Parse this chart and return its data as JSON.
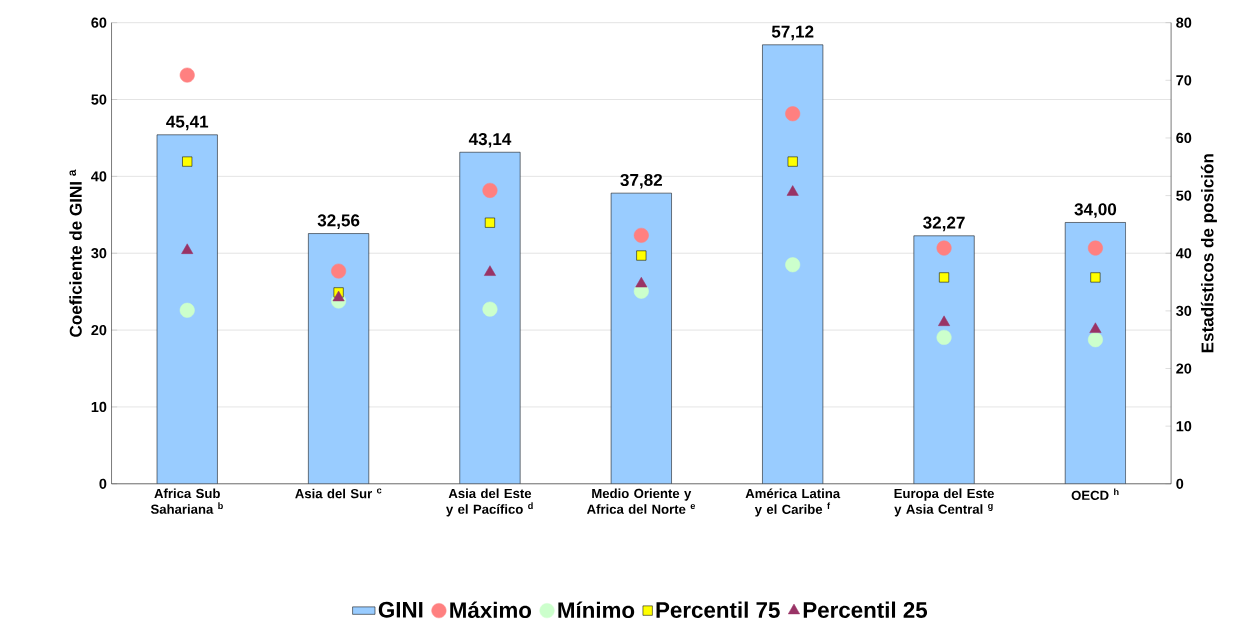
{
  "chart_data": {
    "type": "bar",
    "ylabel": "Coeficiente de GINI $^{a}$",
    "y2label": "Estadísticos de posición",
    "categories": [
      "Africa Sub Sahariana $^{b}$",
      "Asia del Sur $^{c}$",
      "Asia del Este y el Pacífico $^{d}$",
      "Medio Oriente y Africa del Norte $^{e}$",
      "América Latina y el Caribe $^{f}$",
      "Europa del Este y Asia Central $^{g}$",
      "OECD $^{h}$"
    ],
    "series": [
      {
        "name": "GINI",
        "color": "#99ccff",
        "values": [
          45.41,
          32.56,
          43.14,
          37.82,
          57.12,
          32.27,
          34.0
        ],
        "value_labels": [
          "45,41",
          "32,56",
          "43,14",
          "37,82",
          "57,12",
          "32,27",
          "34,00"
        ]
      },
      {
        "name": "Máximo",
        "type": "scatter",
        "axis": "y2",
        "marker": "circle",
        "color": "#ff8080",
        "values": [
          70.9,
          36.9,
          50.9,
          43.1,
          64.2,
          40.9,
          40.9
        ]
      },
      {
        "name": "Mínimo",
        "type": "scatter",
        "axis": "y2",
        "marker": "circle",
        "color": "#ccffcc",
        "values": [
          30.1,
          31.7,
          30.3,
          33.4,
          38.0,
          25.4,
          25.0
        ]
      },
      {
        "name": "Percentil 75",
        "type": "scatter",
        "axis": "y2",
        "marker": "square",
        "color": "#ffff00",
        "values": [
          55.9,
          33.2,
          45.3,
          39.6,
          55.9,
          35.8,
          35.8
        ]
      },
      {
        "name": "Percentil 25",
        "type": "scatter",
        "axis": "y2",
        "marker": "triangle",
        "color": "#993366",
        "values": [
          40.5,
          32.3,
          36.7,
          34.7,
          50.6,
          28.0,
          26.8
        ]
      }
    ],
    "ylim": [
      0,
      60
    ],
    "yticks": [
      0,
      10,
      20,
      30,
      40,
      50,
      60
    ],
    "y2lim": [
      0,
      80
    ],
    "y2ticks": [
      0,
      10,
      20,
      30,
      40,
      50,
      60,
      70,
      80
    ],
    "grid": "y",
    "legend": "bottom"
  }
}
